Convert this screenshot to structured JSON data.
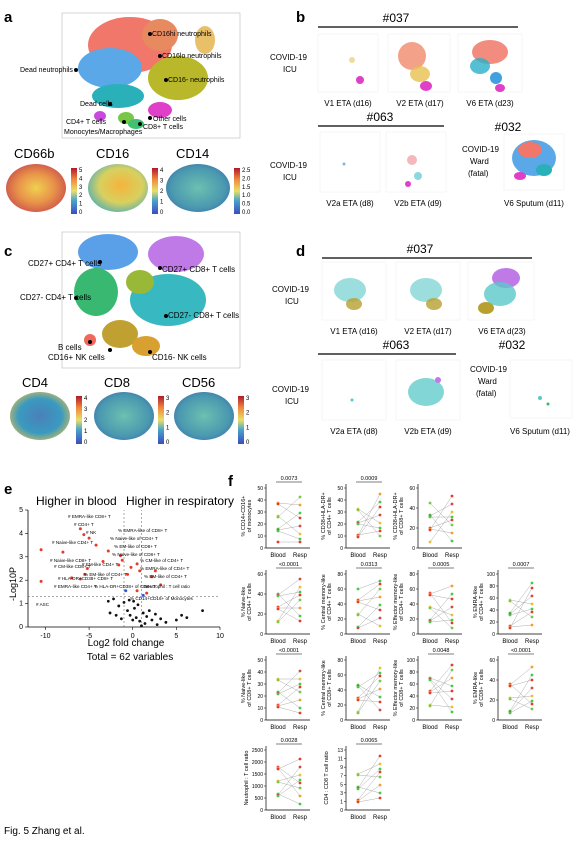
{
  "panels": {
    "a": "a",
    "b": "b",
    "c": "c",
    "d": "d",
    "e": "e",
    "f": "f"
  },
  "panel_a": {
    "labels": [
      "CD16hi neutrophils",
      "CD16lo neutrophils",
      "CD16- neutrophils",
      "Dead neutrophils",
      "Dead cells",
      "Other cells",
      "CD4+ T cells",
      "CD8+ T cells",
      "Monocytes/Macrophages"
    ],
    "markers": [
      "CD66b",
      "CD16",
      "CD14"
    ],
    "scale_ticks": [
      [
        "5",
        "4",
        "3",
        "2",
        "1",
        "0"
      ],
      [
        "4",
        "3",
        "2",
        "1",
        "0"
      ],
      [
        "2.5",
        "2.0",
        "1.5",
        "1.0",
        "0.5",
        "0.0"
      ]
    ]
  },
  "panel_b": {
    "patient1": "#037",
    "patient2": "#063",
    "patient3": "#032",
    "group_icu": "COVID-19 ICU",
    "group_ward": "COVID-19 Ward (fatal)",
    "samples": [
      "V1 ETA (d16)",
      "V2 ETA (d17)",
      "V6 ETA (d23)",
      "V2a ETA (d8)",
      "V2b ETA (d9)",
      "V6 Sputum (d11)"
    ]
  },
  "panel_c": {
    "labels": [
      "CD27+ CD4+ T cells",
      "CD27+ CD8+ T cells",
      "CD27- CD4+ T cells",
      "CD27- CD8+ T cells",
      "B cells",
      "CD16+ NK cells",
      "CD16- NK cells"
    ],
    "markers": [
      "CD4",
      "CD8",
      "CD56"
    ],
    "scale_ticks": [
      [
        "4",
        "3",
        "2",
        "1",
        "0"
      ],
      [
        "3",
        "2",
        "1",
        "0"
      ],
      [
        "3",
        "2",
        "1",
        "0"
      ]
    ]
  },
  "panel_d": {
    "patient1": "#037",
    "patient2": "#063",
    "patient3": "#032",
    "samples": [
      "V1 ETA (d16)",
      "V2 ETA (d17)",
      "V6 ETA d(23)",
      "V2a ETA (d8)",
      "V2b ETA (d9)",
      "V6 Sputum (d11)"
    ]
  },
  "panel_e": {
    "left_header": "Higher in blood",
    "right_header": "Higher in respiratory",
    "xlabel": "Log2 fold change",
    "ylabel": "-Log10P",
    "total": "Total = 62 variables",
    "xticks": [
      "-10",
      "-5",
      "0",
      "5",
      "10"
    ],
    "yticks": [
      "0",
      "1",
      "2",
      "3",
      "4",
      "5"
    ],
    "annotations": [
      "# EMRA-like CD8+ T",
      "# CD4+ T",
      "# NK",
      "# Naive-like CD4+ T",
      "# Naive-like CD8+ T",
      "% EMRA-like of CD8+ T",
      "% Naive-like of CD4+ T",
      "% EM-like of CD8+ T",
      "% Naive-like of CD8+ T",
      "# CM-like CD8+ T",
      "# EM-like CD4+ T",
      "# HLA-DR+CD38+ CD8+ T",
      "# EMRA-like CD4+ T",
      "# ASC",
      "% HLA-DR+CD38+ of CD8+ T",
      "% CM-like of CD4+ T",
      "% EMRA-like of CD4+ T",
      "% EM-like of CD4+ T",
      "Neutrophil : T cell ratio",
      "% CD14+CD16+ of Monocytes",
      "% EM-like of CD4+ T"
    ]
  },
  "chart_data": [
    {
      "type": "scatter",
      "title": "",
      "ylabel": "% CD14+CD16+ of monocytes",
      "categories": [
        "Blood",
        "Resp"
      ],
      "p_value": "0.0073"
    },
    {
      "type": "scatter",
      "title": "",
      "ylabel": "% CD38+HLA-DR+ of CD4+ T cells",
      "categories": [
        "Blood",
        "Resp"
      ],
      "p_value": "0.0009"
    },
    {
      "type": "scatter",
      "title": "",
      "ylabel": "% CD38+HLA-DR+ of CD8+ T cells",
      "categories": [
        "Blood",
        "Resp"
      ],
      "p_value": ""
    },
    {
      "type": "scatter",
      "title": "",
      "ylabel": "% Naive-like of CD4+ T cells",
      "categories": [
        "Blood",
        "Resp"
      ],
      "p_value": "<0.0001"
    },
    {
      "type": "scatter",
      "title": "",
      "ylabel": "% Central memory-like of CD4+ T cells",
      "categories": [
        "Blood",
        "Resp"
      ],
      "p_value": "0.0313"
    },
    {
      "type": "scatter",
      "title": "",
      "ylabel": "% Effector memory-like of CD4+ T cells",
      "categories": [
        "Blood",
        "Resp"
      ],
      "p_value": "0.0005"
    },
    {
      "type": "scatter",
      "title": "",
      "ylabel": "% EMRA-like of CD4+ T cells",
      "categories": [
        "Blood",
        "Resp"
      ],
      "p_value": "0.0007"
    },
    {
      "type": "scatter",
      "title": "",
      "ylabel": "% Naive-like of CD8+ T cells",
      "categories": [
        "Blood",
        "Resp"
      ],
      "p_value": "<0.0001"
    },
    {
      "type": "scatter",
      "title": "",
      "ylabel": "% Central memory-like of CD8+ T cells",
      "categories": [
        "Blood",
        "Resp"
      ],
      "p_value": ""
    },
    {
      "type": "scatter",
      "title": "",
      "ylabel": "% Effector memory-like of CD8+ T cells",
      "categories": [
        "Blood",
        "Resp"
      ],
      "p_value": "0.0048"
    },
    {
      "type": "scatter",
      "title": "",
      "ylabel": "% EMRA-like of CD8+ T cells",
      "categories": [
        "Blood",
        "Resp"
      ],
      "p_value": "<0.0001"
    },
    {
      "type": "scatter",
      "title": "",
      "ylabel": "Neutrophil : T cell ratio",
      "categories": [
        "Blood",
        "Resp"
      ],
      "p_value": "0.0028"
    },
    {
      "type": "scatter",
      "title": "",
      "ylabel": "CD4 : CD8 T cell ratio",
      "categories": [
        "Blood",
        "Resp"
      ],
      "p_value": "0.0065"
    }
  ],
  "caption": "Fig. 5 Zhang et al."
}
